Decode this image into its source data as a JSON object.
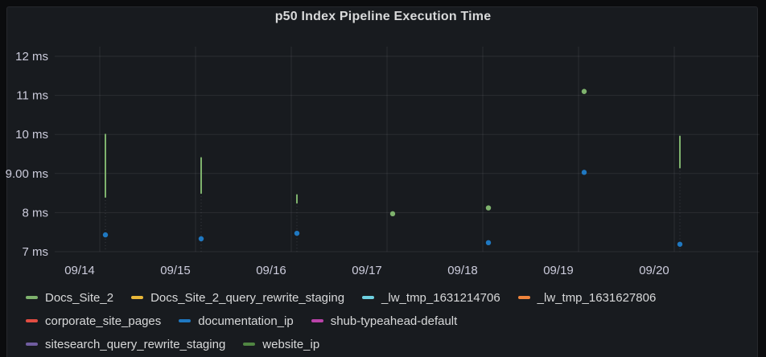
{
  "panel": {
    "title": "p50 Index Pipeline Execution Time"
  },
  "chart_data": {
    "type": "scatter",
    "title": "p50 Index Pipeline Execution Time",
    "unit": "ms",
    "grid": true,
    "legend_position": "bottom",
    "x_categories": [
      "09/14",
      "09/15",
      "09/16",
      "09/17",
      "09/18",
      "09/19",
      "09/20"
    ],
    "y_ticks": [
      {
        "value": 7,
        "label": "7 ms"
      },
      {
        "value": 8,
        "label": "8 ms"
      },
      {
        "value": 9,
        "label": "9.00 ms"
      },
      {
        "value": 10,
        "label": "10 ms"
      },
      {
        "value": 11,
        "label": "11 ms"
      },
      {
        "value": 12,
        "label": "12 ms"
      }
    ],
    "ylim": [
      6.9,
      12.25
    ],
    "series": [
      {
        "name": "Docs_Site_2",
        "color": "#7EB26D",
        "points": [
          {
            "x": "09/14",
            "low": 8.4,
            "high": 10.0
          },
          {
            "x": "09/15",
            "low": 8.5,
            "high": 9.4
          },
          {
            "x": "09/16",
            "low": 8.25,
            "high": 8.45
          },
          {
            "x": "09/17",
            "value": 7.97
          },
          {
            "x": "09/18",
            "value": 8.12
          },
          {
            "x": "09/19",
            "value": 11.1
          },
          {
            "x": "09/20",
            "low": 9.15,
            "high": 9.95
          }
        ]
      },
      {
        "name": "documentation_ip",
        "color": "#1F78C1",
        "points": [
          {
            "x": "09/14",
            "value": 7.43
          },
          {
            "x": "09/15",
            "value": 7.33
          },
          {
            "x": "09/16",
            "value": 7.47
          },
          {
            "x": "09/18",
            "value": 7.23
          },
          {
            "x": "09/19",
            "value": 9.03
          },
          {
            "x": "09/20",
            "value": 7.19
          }
        ]
      }
    ],
    "legend": {
      "rows": [
        [
          {
            "label": "Docs_Site_2",
            "color": "#7EB26D"
          },
          {
            "label": "Docs_Site_2_query_rewrite_staging",
            "color": "#EAB839"
          },
          {
            "label": "_lw_tmp_1631214706",
            "color": "#6ED0E0"
          },
          {
            "label": "_lw_tmp_1631627806",
            "color": "#EF843C"
          }
        ],
        [
          {
            "label": "corporate_site_pages",
            "color": "#E24D42"
          },
          {
            "label": "documentation_ip",
            "color": "#1F78C1"
          },
          {
            "label": "shub-typeahead-default",
            "color": "#BA43A9"
          }
        ],
        [
          {
            "label": "sitesearch_query_rewrite_staging",
            "color": "#705DA0"
          },
          {
            "label": "website_ip",
            "color": "#508642"
          }
        ]
      ]
    }
  }
}
